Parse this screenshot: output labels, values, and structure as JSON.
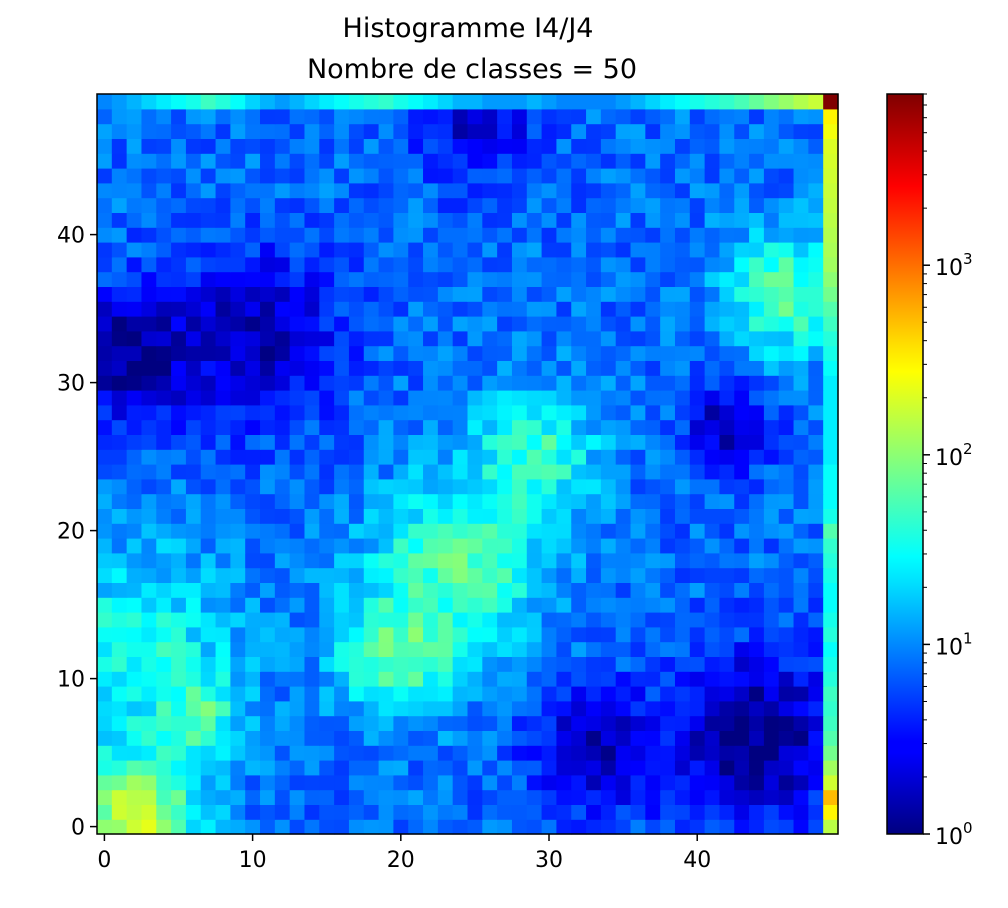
{
  "chart_data": {
    "type": "heatmap",
    "title": "Histogramme I4/J4",
    "subtitle": "Nombre de classes = 50",
    "nx": 50,
    "ny": 50,
    "xlim": [
      -0.5,
      49.5
    ],
    "ylim": [
      -0.5,
      49.5
    ],
    "x_ticks": [
      0,
      10,
      20,
      30,
      40
    ],
    "y_ticks": [
      0,
      10,
      20,
      30,
      40
    ],
    "grid": false,
    "colormap": "jet",
    "color_scale": "log",
    "color_range": [
      1,
      8000
    ],
    "colorbar_ticks": [
      {
        "value": 1,
        "base": "10",
        "exp": "0"
      },
      {
        "value": 10,
        "base": "10",
        "exp": "1"
      },
      {
        "value": 100,
        "base": "10",
        "exp": "2"
      },
      {
        "value": 1000,
        "base": "10",
        "exp": "3"
      }
    ],
    "regions": [
      {
        "x": 2,
        "y": 1,
        "value": 200,
        "spread": 3
      },
      {
        "x": 6,
        "y": 8,
        "value": 120,
        "spread": 2
      },
      {
        "x": 20,
        "y": 12,
        "value": 80,
        "spread": 3
      },
      {
        "x": 24,
        "y": 18,
        "value": 70,
        "spread": 4
      },
      {
        "x": 29,
        "y": 25,
        "value": 50,
        "spread": 3
      },
      {
        "x": 46,
        "y": 36,
        "value": 60,
        "spread": 3
      },
      {
        "x": 2,
        "y": 12,
        "value": 35,
        "spread": 5
      },
      {
        "x": 44,
        "y": 6,
        "value": 1,
        "spread": 4
      },
      {
        "x": 33,
        "y": 5,
        "value": 1.5,
        "spread": 3
      },
      {
        "x": 2,
        "y": 32,
        "value": 1,
        "spread": 3
      },
      {
        "x": 10,
        "y": 33,
        "value": 1.5,
        "spread": 4
      },
      {
        "x": 25,
        "y": 48,
        "value": 2,
        "spread": 3
      },
      {
        "x": 42,
        "y": 27,
        "value": 1.5,
        "spread": 2
      }
    ],
    "right_column": [
      150,
      300,
      500,
      180,
      120,
      80,
      60,
      50,
      45,
      50,
      40,
      35,
      30,
      40,
      35,
      30,
      30,
      35,
      40,
      45,
      60,
      35,
      30,
      30,
      30,
      25,
      25,
      25,
      25,
      25,
      25,
      30,
      35,
      40,
      50,
      60,
      80,
      100,
      120,
      130,
      140,
      150,
      160,
      170,
      180,
      190,
      200,
      250,
      300,
      8000
    ],
    "top_row": [
      10,
      12,
      15,
      20,
      25,
      30,
      35,
      50,
      40,
      30,
      20,
      15,
      12,
      15,
      20,
      25,
      30,
      35,
      40,
      45,
      35,
      30,
      25,
      20,
      15,
      15,
      12,
      12,
      12,
      15,
      12,
      10,
      10,
      10,
      10,
      12,
      15,
      20,
      25,
      30,
      35,
      40,
      45,
      55,
      70,
      90,
      110,
      140,
      170,
      8000
    ]
  }
}
